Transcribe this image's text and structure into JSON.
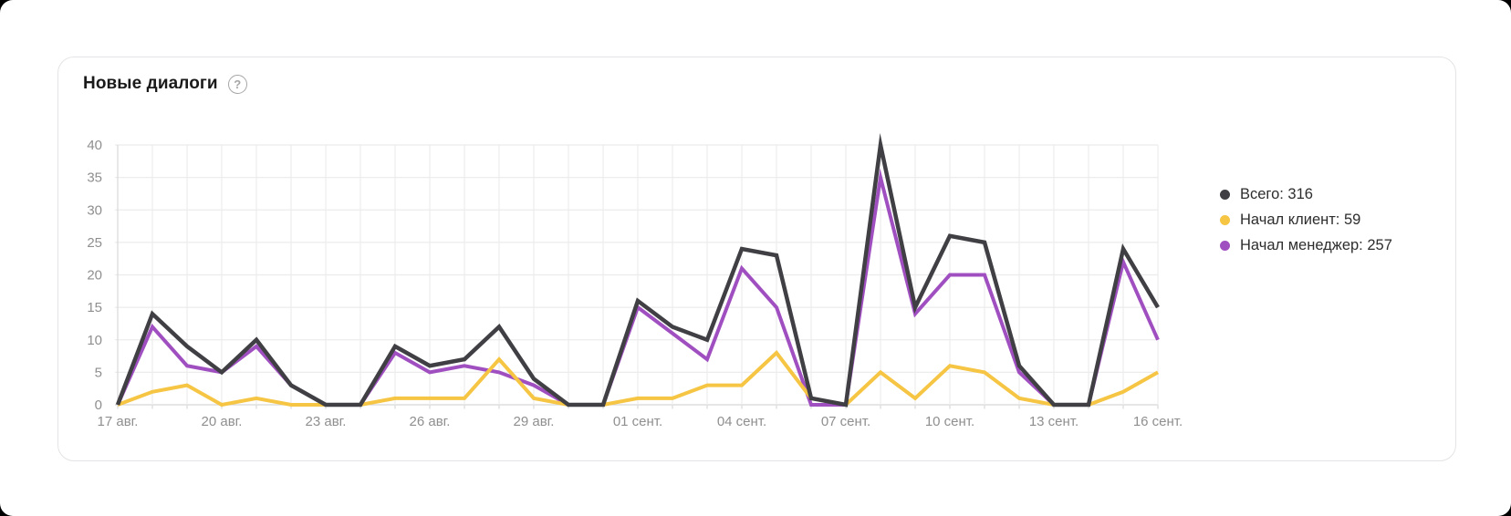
{
  "card": {
    "title": "Новые диалоги",
    "help_icon": "?"
  },
  "legend": {
    "items": [
      {
        "label": "Всего",
        "value": "316",
        "text": "Всего: 316",
        "color": "#3f3f44"
      },
      {
        "label": "Начал клиент",
        "value": "59",
        "text": "Начал клиент: 59",
        "color": "#f5c543"
      },
      {
        "label": "Начал менеджер",
        "value": "257",
        "text": "Начал менеджер: 257",
        "color": "#a04fc0"
      }
    ]
  },
  "chart_data": {
    "type": "line",
    "title": "Новые диалоги",
    "xlabel": "",
    "ylabel": "",
    "ylim": [
      0,
      40
    ],
    "yticks": [
      0,
      5,
      10,
      15,
      20,
      25,
      30,
      35,
      40
    ],
    "grid": true,
    "legend_position": "right",
    "x": [
      "17 авг.",
      "18 авг.",
      "19 авг.",
      "20 авг.",
      "21 авг.",
      "22 авг.",
      "23 авг.",
      "24 авг.",
      "25 авг.",
      "26 авг.",
      "27 авг.",
      "28 авг.",
      "29 авг.",
      "30 авг.",
      "31 авг.",
      "01 сент.",
      "02 сент.",
      "03 сент.",
      "04 сент.",
      "05 сент.",
      "06 сент.",
      "07 сент.",
      "08 сент.",
      "09 сент.",
      "10 сент.",
      "11 сент.",
      "12 сент.",
      "13 сент.",
      "14 сент.",
      "15 сент.",
      "16 сент."
    ],
    "x_tick_labels_shown": [
      "17 авг.",
      "20 авг.",
      "23 авг.",
      "26 авг.",
      "29 авг.",
      "01 сент.",
      "04 сент.",
      "07 сент.",
      "10 сент.",
      "13 сент.",
      "16 сент."
    ],
    "x_tick_every": 3,
    "series": [
      {
        "name": "Всего",
        "total": 316,
        "color": "#3f3f44",
        "values": [
          0,
          14,
          9,
          5,
          10,
          3,
          0,
          0,
          9,
          6,
          7,
          12,
          4,
          0,
          0,
          16,
          12,
          10,
          24,
          23,
          1,
          0,
          40,
          15,
          26,
          25,
          6,
          0,
          0,
          24,
          15
        ]
      },
      {
        "name": "Начал клиент",
        "total": 59,
        "color": "#f5c543",
        "values": [
          0,
          2,
          3,
          0,
          1,
          0,
          0,
          0,
          1,
          1,
          1,
          7,
          1,
          0,
          0,
          1,
          1,
          3,
          3,
          8,
          1,
          0,
          5,
          1,
          6,
          5,
          1,
          0,
          0,
          2,
          5
        ]
      },
      {
        "name": "Начал менеджер",
        "total": 257,
        "color": "#a04fc0",
        "values": [
          0,
          12,
          6,
          5,
          9,
          3,
          0,
          0,
          8,
          5,
          6,
          5,
          3,
          0,
          0,
          15,
          11,
          7,
          21,
          15,
          0,
          0,
          35,
          14,
          20,
          20,
          5,
          0,
          0,
          22,
          10
        ]
      }
    ]
  }
}
